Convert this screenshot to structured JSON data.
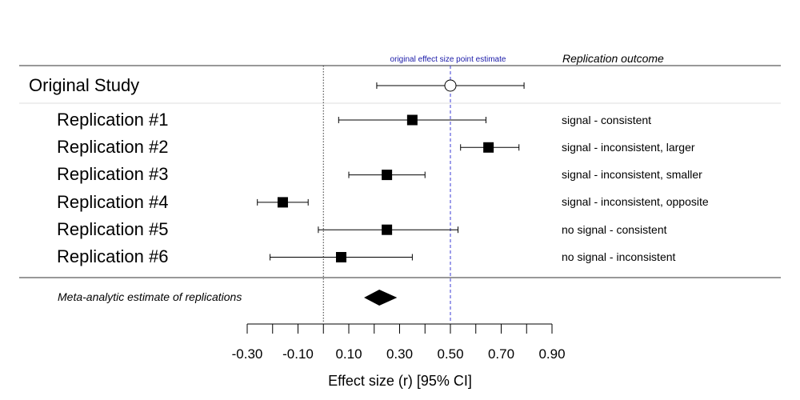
{
  "colors": {
    "ink": "#000000",
    "reference_line": "#3b3bd6",
    "annotation_text": "#1a1aa8",
    "separator_light": "#dddddd",
    "separator_dark": "#333333"
  },
  "chart_data": {
    "type": "forest",
    "header": {
      "annotation": "original effect size point estimate",
      "outcome_header": "Replication outcome"
    },
    "original": {
      "label": "Original Study",
      "estimate": 0.5,
      "ci": [
        0.21,
        0.79
      ]
    },
    "replications": [
      {
        "label": "Replication #1",
        "estimate": 0.35,
        "ci": [
          0.06,
          0.64
        ],
        "outcome": "signal - consistent"
      },
      {
        "label": "Replication #2",
        "estimate": 0.65,
        "ci": [
          0.54,
          0.77
        ],
        "outcome": "signal - inconsistent, larger"
      },
      {
        "label": "Replication #3",
        "estimate": 0.25,
        "ci": [
          0.1,
          0.4
        ],
        "outcome": "signal - inconsistent, smaller"
      },
      {
        "label": "Replication #4",
        "estimate": -0.16,
        "ci": [
          -0.26,
          -0.06
        ],
        "outcome": "signal - inconsistent, opposite"
      },
      {
        "label": "Replication #5",
        "estimate": 0.25,
        "ci": [
          -0.02,
          0.53
        ],
        "outcome": "no signal - consistent"
      },
      {
        "label": "Replication #6",
        "estimate": 0.07,
        "ci": [
          -0.21,
          0.35
        ],
        "outcome": "no signal - inconsistent"
      }
    ],
    "meta": {
      "label": "Meta-analytic estimate of replications",
      "estimate": 0.22,
      "ci": [
        0.16,
        0.29
      ]
    },
    "x_axis": {
      "label": "Effect size (r) [95% CI]",
      "range": [
        -0.3,
        0.9
      ],
      "tick_values": [
        -0.3,
        -0.2,
        -0.1,
        0.0,
        0.1,
        0.2,
        0.3,
        0.4,
        0.5,
        0.6,
        0.7,
        0.8,
        0.9
      ],
      "tick_labels": [
        {
          "value": -0.3,
          "text": "-0.30"
        },
        {
          "value": -0.1,
          "text": "-0.10"
        },
        {
          "value": 0.1,
          "text": "0.10"
        },
        {
          "value": 0.3,
          "text": "0.30"
        },
        {
          "value": 0.5,
          "text": "0.50"
        },
        {
          "value": 0.7,
          "text": "0.70"
        },
        {
          "value": 0.9,
          "text": "0.90"
        }
      ]
    },
    "reference_lines": {
      "null_effect": 0.0,
      "original_estimate": 0.5
    }
  }
}
